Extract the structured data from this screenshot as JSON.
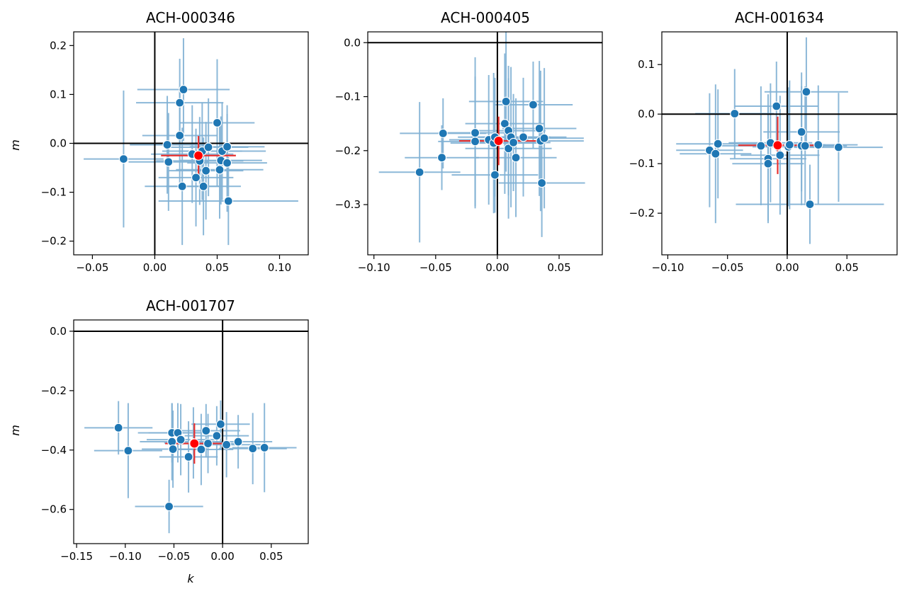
{
  "chart_data": [
    {
      "type": "scatter",
      "title": "ACH-000346",
      "xlabel": "",
      "ylabel": "m",
      "xlim": [
        -0.065,
        0.123
      ],
      "ylim": [
        -0.228,
        0.228
      ],
      "xticks": [
        -0.05,
        0.0,
        0.05,
        0.1
      ],
      "yticks": [
        -0.2,
        -0.1,
        0.0,
        0.1,
        0.2
      ],
      "xtick_labels": [
        "−0.05",
        "0.00",
        "0.05",
        "0.10"
      ],
      "ytick_labels": [
        "−0.2",
        "−0.1",
        "0.0",
        "0.1",
        "0.2"
      ],
      "reference_lines": {
        "x": 0,
        "y": 0
      },
      "points": [
        {
          "x": -0.025,
          "y": -0.032,
          "xerr": 0.032,
          "yerr": 0.14
        },
        {
          "x": 0.023,
          "y": 0.11,
          "xerr": 0.037,
          "yerr": 0.105
        },
        {
          "x": 0.02,
          "y": 0.083,
          "xerr": 0.035,
          "yerr": 0.09
        },
        {
          "x": 0.02,
          "y": 0.016,
          "xerr": 0.03,
          "yerr": 0.1
        },
        {
          "x": 0.01,
          "y": -0.003,
          "xerr": 0.03,
          "yerr": 0.1
        },
        {
          "x": 0.011,
          "y": -0.038,
          "xerr": 0.032,
          "yerr": 0.1
        },
        {
          "x": 0.022,
          "y": -0.088,
          "xerr": 0.03,
          "yerr": 0.12
        },
        {
          "x": 0.03,
          "y": -0.022,
          "xerr": 0.033,
          "yerr": 0.1
        },
        {
          "x": 0.033,
          "y": -0.07,
          "xerr": 0.03,
          "yerr": 0.1
        },
        {
          "x": 0.036,
          "y": -0.036,
          "xerr": 0.035,
          "yerr": 0.09
        },
        {
          "x": 0.038,
          "y": -0.016,
          "xerr": 0.032,
          "yerr": 0.1
        },
        {
          "x": 0.039,
          "y": -0.088,
          "xerr": 0.03,
          "yerr": 0.1
        },
        {
          "x": 0.041,
          "y": -0.056,
          "xerr": 0.03,
          "yerr": 0.1
        },
        {
          "x": 0.043,
          "y": -0.008,
          "xerr": 0.032,
          "yerr": 0.1
        },
        {
          "x": 0.05,
          "y": 0.042,
          "xerr": 0.03,
          "yerr": 0.13
        },
        {
          "x": 0.052,
          "y": -0.054,
          "xerr": 0.035,
          "yerr": 0.1
        },
        {
          "x": 0.053,
          "y": -0.035,
          "xerr": 0.033,
          "yerr": 0.09
        },
        {
          "x": 0.054,
          "y": -0.016,
          "xerr": 0.035,
          "yerr": 0.1
        },
        {
          "x": 0.058,
          "y": -0.04,
          "xerr": 0.032,
          "yerr": 0.1
        },
        {
          "x": 0.058,
          "y": -0.007,
          "xerr": 0.03,
          "yerr": 0.085
        },
        {
          "x": 0.059,
          "y": -0.118,
          "xerr": 0.056,
          "yerr": 0.09
        }
      ],
      "mean": {
        "x": 0.035,
        "y": -0.025,
        "xerr": 0.03,
        "yerr": 0.04
      }
    },
    {
      "type": "scatter",
      "title": "ACH-000405",
      "xlabel": "",
      "ylabel": "",
      "xlim": [
        -0.105,
        0.085
      ],
      "ylim": [
        -0.393,
        0.02
      ],
      "xticks": [
        -0.1,
        -0.05,
        0.0,
        0.05
      ],
      "yticks": [
        -0.3,
        -0.2,
        -0.1,
        0.0
      ],
      "xtick_labels": [
        "−0.10",
        "−0.05",
        "0.00",
        "0.05"
      ],
      "ytick_labels": [
        "−0.3",
        "−0.2",
        "−0.1",
        "0.0"
      ],
      "reference_lines": {
        "x": 0,
        "y": 0
      },
      "points": [
        {
          "x": -0.063,
          "y": -0.24,
          "xerr": 0.033,
          "yerr": 0.13
        },
        {
          "x": -0.045,
          "y": -0.213,
          "xerr": 0.03,
          "yerr": 0.06
        },
        {
          "x": -0.044,
          "y": -0.168,
          "xerr": 0.035,
          "yerr": 0.065
        },
        {
          "x": -0.018,
          "y": -0.183,
          "xerr": 0.03,
          "yerr": 0.12
        },
        {
          "x": -0.018,
          "y": -0.167,
          "xerr": 0.03,
          "yerr": 0.14
        },
        {
          "x": -0.007,
          "y": -0.18,
          "xerr": 0.032,
          "yerr": 0.12
        },
        {
          "x": -0.003,
          "y": -0.186,
          "xerr": 0.035,
          "yerr": 0.13
        },
        {
          "x": -0.002,
          "y": -0.175,
          "xerr": 0.03,
          "yerr": 0.11
        },
        {
          "x": -0.002,
          "y": -0.245,
          "xerr": 0.035,
          "yerr": 0.07
        },
        {
          "x": 0.006,
          "y": -0.15,
          "xerr": 0.032,
          "yerr": 0.13
        },
        {
          "x": 0.007,
          "y": -0.109,
          "xerr": 0.03,
          "yerr": 0.13
        },
        {
          "x": 0.009,
          "y": -0.163,
          "xerr": 0.03,
          "yerr": 0.12
        },
        {
          "x": 0.009,
          "y": -0.196,
          "xerr": 0.035,
          "yerr": 0.13
        },
        {
          "x": 0.011,
          "y": -0.175,
          "xerr": 0.032,
          "yerr": 0.13
        },
        {
          "x": 0.013,
          "y": -0.185,
          "xerr": 0.03,
          "yerr": 0.09
        },
        {
          "x": 0.015,
          "y": -0.213,
          "xerr": 0.033,
          "yerr": 0.11
        },
        {
          "x": 0.021,
          "y": -0.175,
          "xerr": 0.035,
          "yerr": 0.11
        },
        {
          "x": 0.029,
          "y": -0.115,
          "xerr": 0.032,
          "yerr": 0.08
        },
        {
          "x": 0.034,
          "y": -0.159,
          "xerr": 0.03,
          "yerr": 0.125
        },
        {
          "x": 0.035,
          "y": -0.182,
          "xerr": 0.035,
          "yerr": 0.13
        },
        {
          "x": 0.036,
          "y": -0.26,
          "xerr": 0.035,
          "yerr": 0.1
        },
        {
          "x": 0.038,
          "y": -0.177,
          "xerr": 0.032,
          "yerr": 0.13
        }
      ],
      "mean": {
        "x": 0.001,
        "y": -0.182,
        "xerr": 0.032,
        "yerr": 0.045
      }
    },
    {
      "type": "scatter",
      "title": "ACH-001634",
      "xlabel": "",
      "ylabel": "",
      "xlim": [
        -0.105,
        0.092
      ],
      "ylim": [
        -0.284,
        0.166
      ],
      "xticks": [
        -0.1,
        -0.05,
        0.0,
        0.05
      ],
      "yticks": [
        -0.2,
        -0.1,
        0.0,
        0.1
      ],
      "xtick_labels": [
        "−0.10",
        "−0.05",
        "0.00",
        "0.05"
      ],
      "ytick_labels": [
        "−0.2",
        "−0.1",
        "0.0",
        "0.1"
      ],
      "reference_lines": {
        "x": 0,
        "y": 0
      },
      "points": [
        {
          "x": -0.065,
          "y": -0.073,
          "xerr": 0.028,
          "yerr": 0.115
        },
        {
          "x": -0.06,
          "y": -0.08,
          "xerr": 0.03,
          "yerr": 0.14
        },
        {
          "x": -0.058,
          "y": -0.06,
          "xerr": 0.035,
          "yerr": 0.11
        },
        {
          "x": -0.044,
          "y": 0.001,
          "xerr": 0.033,
          "yerr": 0.09
        },
        {
          "x": -0.022,
          "y": -0.064,
          "xerr": 0.033,
          "yerr": 0.12
        },
        {
          "x": -0.016,
          "y": -0.09,
          "xerr": 0.032,
          "yerr": 0.13
        },
        {
          "x": -0.016,
          "y": -0.1,
          "xerr": 0.03,
          "yerr": 0.115
        },
        {
          "x": -0.014,
          "y": -0.058,
          "xerr": 0.035,
          "yerr": 0.12
        },
        {
          "x": -0.009,
          "y": 0.016,
          "xerr": 0.035,
          "yerr": 0.09
        },
        {
          "x": -0.006,
          "y": -0.083,
          "xerr": 0.033,
          "yerr": 0.12
        },
        {
          "x": 0.001,
          "y": -0.066,
          "xerr": 0.03,
          "yerr": 0.12
        },
        {
          "x": 0.002,
          "y": -0.062,
          "xerr": 0.03,
          "yerr": 0.13
        },
        {
          "x": 0.012,
          "y": -0.064,
          "xerr": 0.03,
          "yerr": 0.12
        },
        {
          "x": 0.012,
          "y": -0.036,
          "xerr": 0.032,
          "yerr": 0.12
        },
        {
          "x": 0.015,
          "y": -0.064,
          "xerr": 0.035,
          "yerr": 0.12
        },
        {
          "x": 0.016,
          "y": 0.045,
          "xerr": 0.035,
          "yerr": 0.11
        },
        {
          "x": 0.019,
          "y": -0.182,
          "xerr": 0.062,
          "yerr": 0.08
        },
        {
          "x": 0.026,
          "y": -0.062,
          "xerr": 0.033,
          "yerr": 0.12
        },
        {
          "x": 0.043,
          "y": -0.067,
          "xerr": 0.037,
          "yerr": 0.11
        }
      ],
      "mean": {
        "x": -0.008,
        "y": -0.063,
        "xerr": 0.033,
        "yerr": 0.058
      }
    },
    {
      "type": "scatter",
      "title": "ACH-001707",
      "xlabel": "k",
      "ylabel": "m",
      "xlim": [
        -0.153,
        0.088
      ],
      "ylim": [
        -0.715,
        0.038
      ],
      "xticks": [
        -0.15,
        -0.1,
        -0.05,
        0.0,
        0.05
      ],
      "yticks": [
        -0.6,
        -0.4,
        -0.2,
        0.0
      ],
      "xtick_labels": [
        "−0.15",
        "−0.10",
        "−0.05",
        "0.00",
        "0.05"
      ],
      "ytick_labels": [
        "−0.6",
        "−0.4",
        "−0.2",
        "0.0"
      ],
      "reference_lines": {
        "x": 0,
        "y": 0
      },
      "points": [
        {
          "x": -0.107,
          "y": -0.325,
          "xerr": 0.035,
          "yerr": 0.09
        },
        {
          "x": -0.097,
          "y": -0.402,
          "xerr": 0.035,
          "yerr": 0.16
        },
        {
          "x": -0.055,
          "y": -0.59,
          "xerr": 0.035,
          "yerr": 0.09
        },
        {
          "x": -0.052,
          "y": -0.342,
          "xerr": 0.035,
          "yerr": 0.1
        },
        {
          "x": -0.052,
          "y": -0.372,
          "xerr": 0.033,
          "yerr": 0.13
        },
        {
          "x": -0.051,
          "y": -0.397,
          "xerr": 0.032,
          "yerr": 0.13
        },
        {
          "x": -0.046,
          "y": -0.342,
          "xerr": 0.03,
          "yerr": 0.1
        },
        {
          "x": -0.043,
          "y": -0.365,
          "xerr": 0.035,
          "yerr": 0.12
        },
        {
          "x": -0.035,
          "y": -0.423,
          "xerr": 0.03,
          "yerr": 0.12
        },
        {
          "x": -0.03,
          "y": -0.376,
          "xerr": 0.03,
          "yerr": 0.12
        },
        {
          "x": -0.022,
          "y": -0.398,
          "xerr": 0.033,
          "yerr": 0.12
        },
        {
          "x": -0.017,
          "y": -0.335,
          "xerr": 0.035,
          "yerr": 0.09
        },
        {
          "x": -0.015,
          "y": -0.378,
          "xerr": 0.035,
          "yerr": 0.1
        },
        {
          "x": -0.006,
          "y": -0.352,
          "xerr": 0.033,
          "yerr": 0.1
        },
        {
          "x": -0.002,
          "y": -0.313,
          "xerr": 0.03,
          "yerr": 0.08
        },
        {
          "x": 0.004,
          "y": -0.382,
          "xerr": 0.035,
          "yerr": 0.11
        },
        {
          "x": 0.016,
          "y": -0.372,
          "xerr": 0.035,
          "yerr": 0.09
        },
        {
          "x": 0.031,
          "y": -0.395,
          "xerr": 0.035,
          "yerr": 0.12
        },
        {
          "x": 0.043,
          "y": -0.392,
          "xerr": 0.033,
          "yerr": 0.15
        }
      ],
      "mean": {
        "x": -0.029,
        "y": -0.378,
        "xerr": 0.03,
        "yerr": 0.068
      }
    }
  ],
  "colors": {
    "point_fill": "#1f77b4",
    "point_edge": "#ffffff",
    "errorbar": "#7fb0d4",
    "mean_fill": "#ff0000",
    "mean_errorbar": "#e8312f",
    "reference_line": "#000000",
    "frame": "#000000"
  }
}
